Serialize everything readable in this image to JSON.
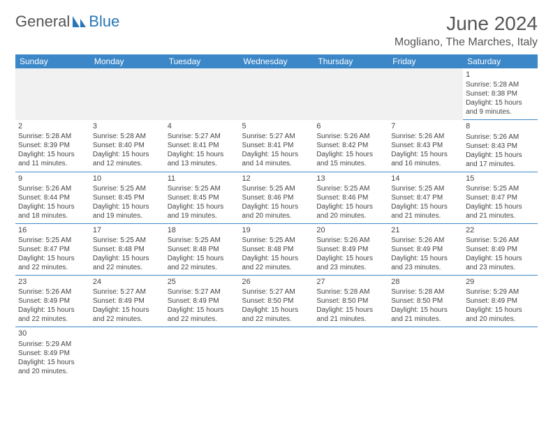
{
  "logo": {
    "text_a": "General",
    "text_b": "Blue"
  },
  "title": "June 2024",
  "location": "Mogliano, The Marches, Italy",
  "colors": {
    "header_bg": "#3b87c8",
    "header_text": "#ffffff",
    "cell_border": "#3b87c8",
    "text": "#444444",
    "logo_blue": "#2876b8"
  },
  "day_headers": [
    "Sunday",
    "Monday",
    "Tuesday",
    "Wednesday",
    "Thursday",
    "Friday",
    "Saturday"
  ],
  "weeks": [
    [
      null,
      null,
      null,
      null,
      null,
      null,
      {
        "n": "1",
        "sr": "Sunrise: 5:28 AM",
        "ss": "Sunset: 8:38 PM",
        "dl": "Daylight: 15 hours and 9 minutes."
      }
    ],
    [
      {
        "n": "2",
        "sr": "Sunrise: 5:28 AM",
        "ss": "Sunset: 8:39 PM",
        "dl": "Daylight: 15 hours and 11 minutes."
      },
      {
        "n": "3",
        "sr": "Sunrise: 5:28 AM",
        "ss": "Sunset: 8:40 PM",
        "dl": "Daylight: 15 hours and 12 minutes."
      },
      {
        "n": "4",
        "sr": "Sunrise: 5:27 AM",
        "ss": "Sunset: 8:41 PM",
        "dl": "Daylight: 15 hours and 13 minutes."
      },
      {
        "n": "5",
        "sr": "Sunrise: 5:27 AM",
        "ss": "Sunset: 8:41 PM",
        "dl": "Daylight: 15 hours and 14 minutes."
      },
      {
        "n": "6",
        "sr": "Sunrise: 5:26 AM",
        "ss": "Sunset: 8:42 PM",
        "dl": "Daylight: 15 hours and 15 minutes."
      },
      {
        "n": "7",
        "sr": "Sunrise: 5:26 AM",
        "ss": "Sunset: 8:43 PM",
        "dl": "Daylight: 15 hours and 16 minutes."
      },
      {
        "n": "8",
        "sr": "Sunrise: 5:26 AM",
        "ss": "Sunset: 8:43 PM",
        "dl": "Daylight: 15 hours and 17 minutes."
      }
    ],
    [
      {
        "n": "9",
        "sr": "Sunrise: 5:26 AM",
        "ss": "Sunset: 8:44 PM",
        "dl": "Daylight: 15 hours and 18 minutes."
      },
      {
        "n": "10",
        "sr": "Sunrise: 5:25 AM",
        "ss": "Sunset: 8:45 PM",
        "dl": "Daylight: 15 hours and 19 minutes."
      },
      {
        "n": "11",
        "sr": "Sunrise: 5:25 AM",
        "ss": "Sunset: 8:45 PM",
        "dl": "Daylight: 15 hours and 19 minutes."
      },
      {
        "n": "12",
        "sr": "Sunrise: 5:25 AM",
        "ss": "Sunset: 8:46 PM",
        "dl": "Daylight: 15 hours and 20 minutes."
      },
      {
        "n": "13",
        "sr": "Sunrise: 5:25 AM",
        "ss": "Sunset: 8:46 PM",
        "dl": "Daylight: 15 hours and 20 minutes."
      },
      {
        "n": "14",
        "sr": "Sunrise: 5:25 AM",
        "ss": "Sunset: 8:47 PM",
        "dl": "Daylight: 15 hours and 21 minutes."
      },
      {
        "n": "15",
        "sr": "Sunrise: 5:25 AM",
        "ss": "Sunset: 8:47 PM",
        "dl": "Daylight: 15 hours and 21 minutes."
      }
    ],
    [
      {
        "n": "16",
        "sr": "Sunrise: 5:25 AM",
        "ss": "Sunset: 8:47 PM",
        "dl": "Daylight: 15 hours and 22 minutes."
      },
      {
        "n": "17",
        "sr": "Sunrise: 5:25 AM",
        "ss": "Sunset: 8:48 PM",
        "dl": "Daylight: 15 hours and 22 minutes."
      },
      {
        "n": "18",
        "sr": "Sunrise: 5:25 AM",
        "ss": "Sunset: 8:48 PM",
        "dl": "Daylight: 15 hours and 22 minutes."
      },
      {
        "n": "19",
        "sr": "Sunrise: 5:25 AM",
        "ss": "Sunset: 8:48 PM",
        "dl": "Daylight: 15 hours and 22 minutes."
      },
      {
        "n": "20",
        "sr": "Sunrise: 5:26 AM",
        "ss": "Sunset: 8:49 PM",
        "dl": "Daylight: 15 hours and 23 minutes."
      },
      {
        "n": "21",
        "sr": "Sunrise: 5:26 AM",
        "ss": "Sunset: 8:49 PM",
        "dl": "Daylight: 15 hours and 23 minutes."
      },
      {
        "n": "22",
        "sr": "Sunrise: 5:26 AM",
        "ss": "Sunset: 8:49 PM",
        "dl": "Daylight: 15 hours and 23 minutes."
      }
    ],
    [
      {
        "n": "23",
        "sr": "Sunrise: 5:26 AM",
        "ss": "Sunset: 8:49 PM",
        "dl": "Daylight: 15 hours and 22 minutes."
      },
      {
        "n": "24",
        "sr": "Sunrise: 5:27 AM",
        "ss": "Sunset: 8:49 PM",
        "dl": "Daylight: 15 hours and 22 minutes."
      },
      {
        "n": "25",
        "sr": "Sunrise: 5:27 AM",
        "ss": "Sunset: 8:49 PM",
        "dl": "Daylight: 15 hours and 22 minutes."
      },
      {
        "n": "26",
        "sr": "Sunrise: 5:27 AM",
        "ss": "Sunset: 8:50 PM",
        "dl": "Daylight: 15 hours and 22 minutes."
      },
      {
        "n": "27",
        "sr": "Sunrise: 5:28 AM",
        "ss": "Sunset: 8:50 PM",
        "dl": "Daylight: 15 hours and 21 minutes."
      },
      {
        "n": "28",
        "sr": "Sunrise: 5:28 AM",
        "ss": "Sunset: 8:50 PM",
        "dl": "Daylight: 15 hours and 21 minutes."
      },
      {
        "n": "29",
        "sr": "Sunrise: 5:29 AM",
        "ss": "Sunset: 8:49 PM",
        "dl": "Daylight: 15 hours and 20 minutes."
      }
    ],
    [
      {
        "n": "30",
        "sr": "Sunrise: 5:29 AM",
        "ss": "Sunset: 8:49 PM",
        "dl": "Daylight: 15 hours and 20 minutes."
      },
      null,
      null,
      null,
      null,
      null,
      null
    ]
  ]
}
